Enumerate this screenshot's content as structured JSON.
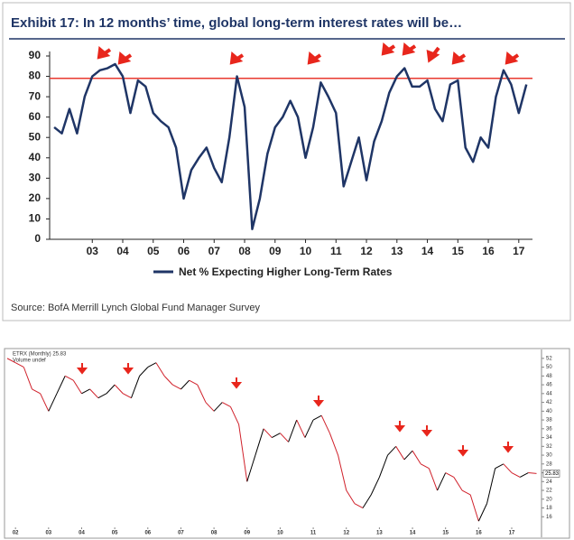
{
  "chart_data": [
    {
      "type": "line",
      "title": "Exhibit 17: In 12 months’ time, global long-term interest rates will be…",
      "source": "Source: BofA Merrill Lynch Global Fund Manager Survey",
      "x": [
        2002.25,
        2002.5,
        2002.75,
        2003,
        2003.25,
        2003.5,
        2003.75,
        2004,
        2004.25,
        2004.5,
        2004.75,
        2005,
        2005.25,
        2005.5,
        2005.75,
        2006,
        2006.25,
        2006.5,
        2006.75,
        2007,
        2007.25,
        2007.5,
        2007.75,
        2008,
        2008.25,
        2008.5,
        2008.75,
        2009,
        2009.25,
        2009.5,
        2009.75,
        2010,
        2010.25,
        2010.5,
        2010.75,
        2011,
        2011.25,
        2011.5,
        2011.75,
        2012,
        2012.25,
        2012.5,
        2012.75,
        2013,
        2013.25,
        2013.5,
        2013.75,
        2014,
        2014.25,
        2014.5,
        2014.75,
        2015,
        2015.25,
        2015.5,
        2015.75,
        2016,
        2016.25,
        2016.5,
        2016.75,
        2017,
        2017.25,
        2017.5,
        2017.75
      ],
      "series": [
        {
          "name": "Net % Expecting Higher Long-Term Rates",
          "color": "#1f3566",
          "values": [
            55,
            52,
            64,
            52,
            70,
            80,
            83,
            84,
            86,
            80,
            62,
            78,
            75,
            62,
            58,
            55,
            45,
            20,
            34,
            40,
            45,
            35,
            28,
            50,
            80,
            65,
            5,
            20,
            42,
            55,
            60,
            68,
            60,
            40,
            55,
            77,
            70,
            62,
            26,
            38,
            50,
            29,
            48,
            58,
            72,
            80,
            84,
            75,
            75,
            78,
            64,
            58,
            76,
            78,
            45,
            38,
            50,
            45,
            70,
            83,
            76,
            62,
            76
          ]
        }
      ],
      "reference_line": 79,
      "reference_color": "#e8392f",
      "xlim": [
        2002.1,
        2017.95
      ],
      "xticks": [
        {
          "value": 2003.5,
          "label": "03"
        },
        {
          "value": 2004.5,
          "label": "04"
        },
        {
          "value": 2005.5,
          "label": "05"
        },
        {
          "value": 2006.5,
          "label": "06"
        },
        {
          "value": 2007.5,
          "label": "07"
        },
        {
          "value": 2008.5,
          "label": "08"
        },
        {
          "value": 2009.5,
          "label": "09"
        },
        {
          "value": 2010.5,
          "label": "10"
        },
        {
          "value": 2011.5,
          "label": "11"
        },
        {
          "value": 2012.5,
          "label": "12"
        },
        {
          "value": 2013.5,
          "label": "13"
        },
        {
          "value": 2014.5,
          "label": "14"
        },
        {
          "value": 2015.5,
          "label": "15"
        },
        {
          "value": 2016.5,
          "label": "16"
        },
        {
          "value": 2017.5,
          "label": "17"
        }
      ],
      "ylim": [
        0,
        90
      ],
      "yticks": [
        0,
        10,
        20,
        30,
        40,
        50,
        60,
        70,
        80,
        90
      ]
    },
    {
      "type": "updown-line",
      "title": "ETRX (Monthly) 25.83",
      "subtitle": "Volume undef",
      "x": [
        2001.75,
        2002,
        2002.25,
        2002.5,
        2002.75,
        2003,
        2003.25,
        2003.5,
        2003.75,
        2004,
        2004.25,
        2004.5,
        2004.75,
        2005,
        2005.25,
        2005.5,
        2005.75,
        2006,
        2006.25,
        2006.5,
        2006.75,
        2007,
        2007.25,
        2007.5,
        2007.75,
        2008,
        2008.25,
        2008.5,
        2008.75,
        2009,
        2009.25,
        2009.5,
        2009.75,
        2010,
        2010.25,
        2010.5,
        2010.75,
        2011,
        2011.25,
        2011.5,
        2011.75,
        2012,
        2012.25,
        2012.5,
        2012.75,
        2013,
        2013.25,
        2013.5,
        2013.75,
        2014,
        2014.25,
        2014.5,
        2014.75,
        2015,
        2015.25,
        2015.5,
        2015.75,
        2016,
        2016.25,
        2016.5,
        2016.75,
        2017,
        2017.25,
        2017.5,
        2017.75
      ],
      "series": [
        {
          "color": "#000000",
          "down_color": "#d0202a",
          "values": [
            52,
            51,
            50,
            45,
            44,
            40,
            44,
            48,
            47,
            44,
            45,
            43,
            44,
            46,
            44,
            43,
            48,
            50,
            51,
            48,
            46,
            45,
            47,
            46,
            42,
            40,
            42,
            41,
            37,
            24,
            30,
            36,
            34,
            35,
            33,
            38,
            34,
            38,
            39,
            35,
            30,
            22,
            19,
            18,
            21,
            25,
            30,
            32,
            29,
            31,
            28,
            27,
            22,
            26,
            25,
            22,
            21,
            15,
            19,
            27,
            28,
            26,
            25,
            26,
            25.83
          ]
        }
      ],
      "xlim": [
        2001.75,
        2017.9
      ],
      "xticks": [
        {
          "value": 2002,
          "label": "02"
        },
        {
          "value": 2003,
          "label": "03"
        },
        {
          "value": 2004,
          "label": "04"
        },
        {
          "value": 2005,
          "label": "05"
        },
        {
          "value": 2006,
          "label": "06"
        },
        {
          "value": 2007,
          "label": "07"
        },
        {
          "value": 2008,
          "label": "08"
        },
        {
          "value": 2009,
          "label": "09"
        },
        {
          "value": 2010,
          "label": "10"
        },
        {
          "value": 2011,
          "label": "11"
        },
        {
          "value": 2012,
          "label": "12"
        },
        {
          "value": 2013,
          "label": "13"
        },
        {
          "value": 2014,
          "label": "14"
        },
        {
          "value": 2015,
          "label": "15"
        },
        {
          "value": 2016,
          "label": "16"
        },
        {
          "value": 2017,
          "label": "17"
        }
      ],
      "ylim": [
        14,
        53
      ],
      "yticks": [
        16,
        18,
        20,
        22,
        24,
        26,
        28,
        30,
        32,
        34,
        36,
        38,
        40,
        42,
        44,
        46,
        48,
        50,
        52
      ]
    }
  ]
}
